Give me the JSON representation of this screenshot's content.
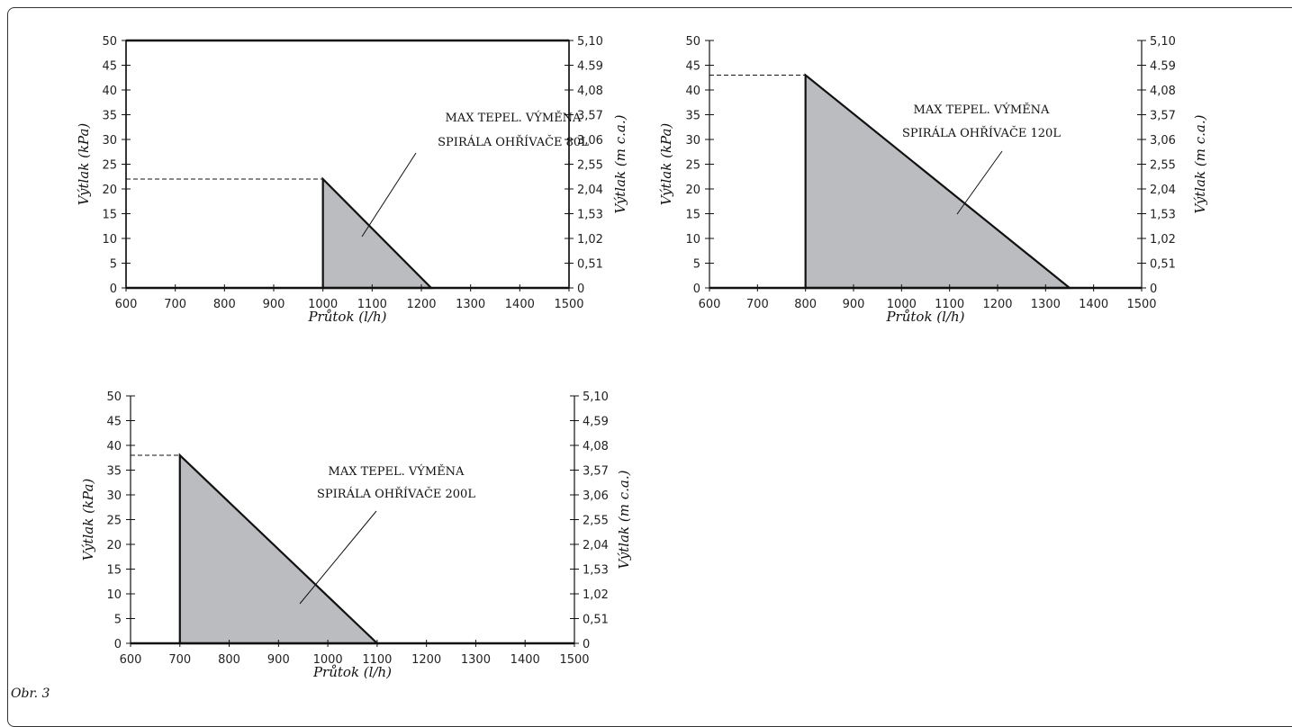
{
  "figure_label": "Obr. 3",
  "chart_data": [
    {
      "type": "area",
      "xlabel": "Průtok (l/h)",
      "ylabel": "Výtlak (kPa)",
      "ylabel_right": "Výtlak (m c.a.)",
      "x_ticks": [
        "600",
        "700",
        "800",
        "900",
        "1000",
        "1100",
        "1200",
        "1300",
        "1400",
        "1500"
      ],
      "y_ticks": [
        "0",
        "5",
        "10",
        "15",
        "20",
        "25",
        "30",
        "35",
        "40",
        "45",
        "50"
      ],
      "y_ticks_right": [
        "0",
        "0,51",
        "1,02",
        "1,53",
        "2,04",
        "2,55",
        "3,06",
        "3,57",
        "4,08",
        "4.59",
        "5,10"
      ],
      "xlim": [
        600,
        1500
      ],
      "ylim": [
        0,
        50
      ],
      "polygon": [
        [
          1000,
          0
        ],
        [
          1000,
          22
        ],
        [
          1220,
          0
        ]
      ],
      "dashed_level": 22,
      "annotation": [
        "MAX TEPEL. VÝMĚNA",
        "SPIRÁLA OHŘÍVAČE 80L"
      ],
      "fill_color": "#bbbcbf"
    },
    {
      "type": "area",
      "xlabel": "Průtok (l/h)",
      "ylabel": "Výtlak (kPa)",
      "ylabel_right": "Výtlak (m c.a.)",
      "x_ticks": [
        "600",
        "700",
        "800",
        "900",
        "1000",
        "1100",
        "1200",
        "1300",
        "1400",
        "1500"
      ],
      "y_ticks": [
        "0",
        "5",
        "10",
        "15",
        "20",
        "25",
        "30",
        "35",
        "40",
        "45",
        "50"
      ],
      "y_ticks_right": [
        "0",
        "0,51",
        "1,02",
        "1,53",
        "2,04",
        "2,55",
        "3,06",
        "3,57",
        "4,08",
        "4.59",
        "5,10"
      ],
      "xlim": [
        600,
        1500
      ],
      "ylim": [
        0,
        50
      ],
      "polygon": [
        [
          800,
          0
        ],
        [
          800,
          43
        ],
        [
          1350,
          0
        ]
      ],
      "dashed_level": 43,
      "annotation": [
        "MAX TEPEL. VÝMĚNA",
        "SPIRÁLA OHŘÍVAČE 120L"
      ],
      "fill_color": "#bbbcbf"
    },
    {
      "type": "area",
      "xlabel": "Průtok (l/h)",
      "ylabel": "Výtlak (kPa)",
      "ylabel_right": "Výtlak (m c.a.)",
      "x_ticks": [
        "600",
        "700",
        "800",
        "900",
        "1000",
        "1100",
        "1200",
        "1300",
        "1400",
        "1500"
      ],
      "y_ticks": [
        "0",
        "5",
        "10",
        "15",
        "20",
        "25",
        "30",
        "35",
        "40",
        "45",
        "50"
      ],
      "y_ticks_right": [
        "0",
        "0,51",
        "1,02",
        "1,53",
        "2,04",
        "2,55",
        "3,06",
        "3,57",
        "4,08",
        "4,59",
        "5,10"
      ],
      "xlim": [
        600,
        1500
      ],
      "ylim": [
        0,
        50
      ],
      "polygon": [
        [
          700,
          0
        ],
        [
          700,
          38
        ],
        [
          1100,
          0
        ]
      ],
      "dashed_level": 38,
      "annotation": [
        "MAX TEPEL. VÝMĚNA",
        "SPIRÁLA OHŘÍVAČE 200L"
      ],
      "fill_color": "#bbbcbf"
    }
  ]
}
